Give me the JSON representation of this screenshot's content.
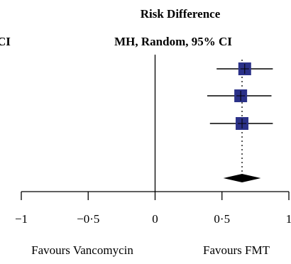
{
  "header": {
    "left_fragment": "CI",
    "title": "Risk Difference",
    "subtitle": "MH, Random, 95% CI"
  },
  "footer": {
    "left_label": "Favours Vancomycin",
    "right_label": "Favours FMT"
  },
  "chart_data": {
    "type": "forest",
    "xlim": [
      -1,
      1
    ],
    "ticks": [
      -1,
      -0.5,
      0,
      0.5,
      1
    ],
    "tick_labels": [
      "−1",
      "−0·5",
      "0",
      "0·5",
      "1"
    ],
    "null_line": 0,
    "studies": [
      {
        "estimate": 0.67,
        "ci": [
          0.46,
          0.88
        ]
      },
      {
        "estimate": 0.64,
        "ci": [
          0.39,
          0.87
        ]
      },
      {
        "estimate": 0.65,
        "ci": [
          0.41,
          0.88
        ]
      }
    ],
    "pooled": {
      "estimate": 0.65,
      "ci": [
        0.51,
        0.79
      ]
    },
    "colors": {
      "marker": "#2b3188",
      "diamond": "#000000",
      "line": "#000000"
    }
  }
}
